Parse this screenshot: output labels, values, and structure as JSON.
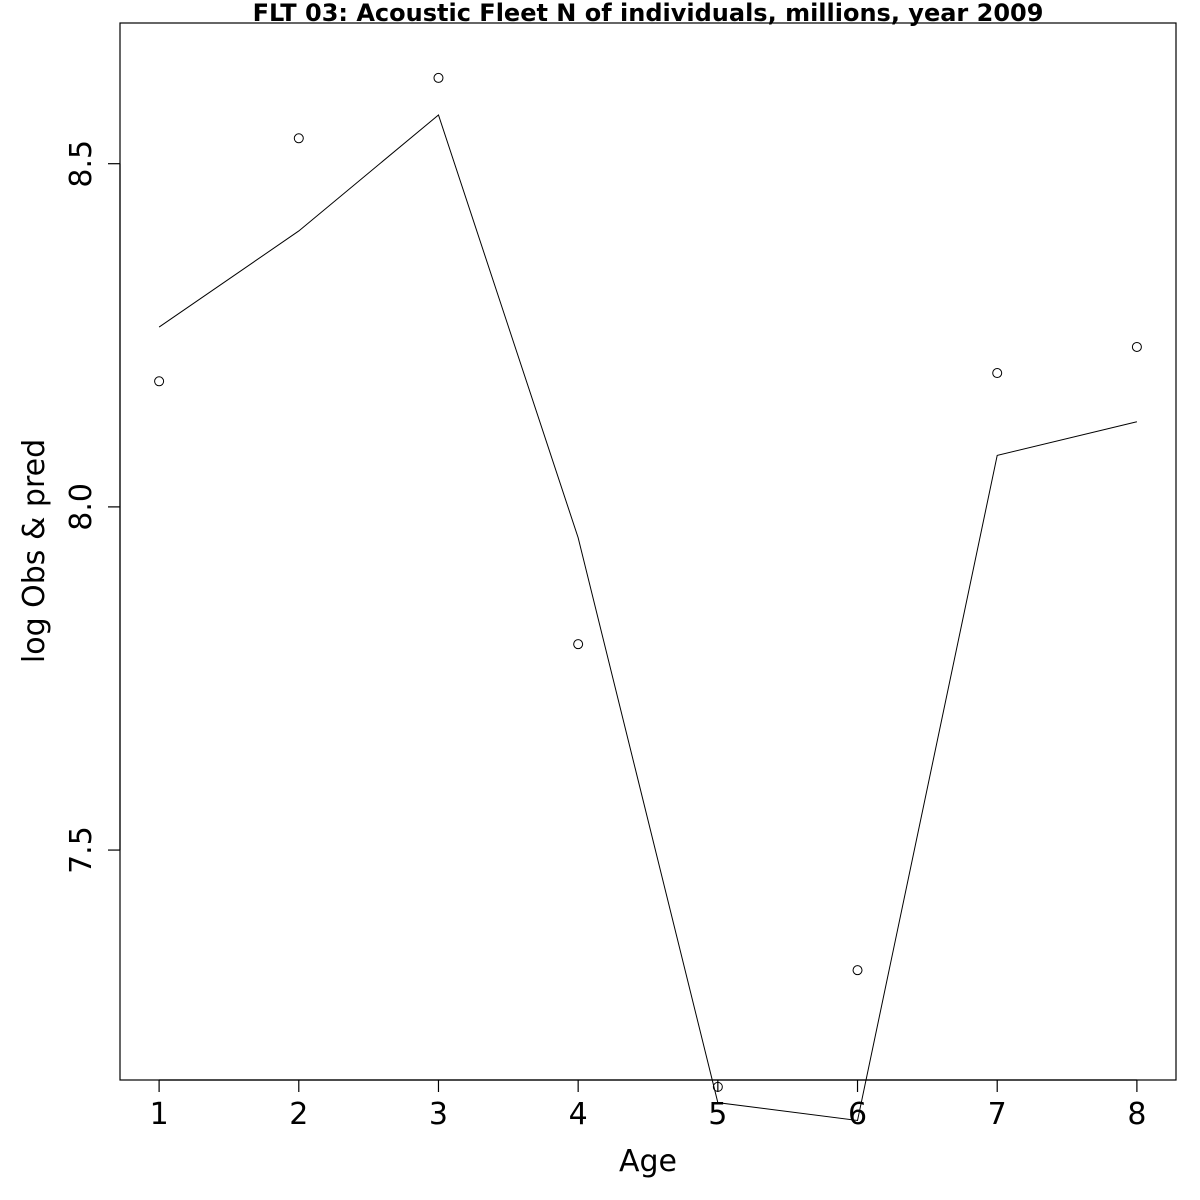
{
  "chart_data": {
    "type": "line",
    "title": "FLT 03: Acoustic Fleet  N of individuals, millions, year 2009",
    "xlabel": "Age",
    "ylabel": "log Obs & pred",
    "xlim": [
      0.72,
      8.28
    ],
    "ylim": [
      7.165,
      8.705
    ],
    "x_ticks": [
      1,
      2,
      3,
      4,
      5,
      6,
      7,
      8
    ],
    "x_tick_labels": [
      "1",
      "2",
      "3",
      "4",
      "5",
      "6",
      "7",
      "8"
    ],
    "y_ticks": [
      7.5,
      8.0,
      8.5
    ],
    "y_tick_labels": [
      "7.5",
      "8.0",
      "8.5"
    ],
    "grid": false,
    "series": [
      {
        "name": "observed",
        "style": "points",
        "marker": "open-circle",
        "x": [
          1,
          2,
          3,
          4,
          5,
          6,
          7,
          8
        ],
        "values": [
          8.183,
          8.537,
          8.625,
          7.8,
          7.155,
          7.325,
          8.195,
          8.233
        ]
      },
      {
        "name": "predicted",
        "style": "line",
        "x": [
          1,
          2,
          3,
          4,
          5,
          6,
          7,
          8
        ],
        "values": [
          8.262,
          8.402,
          8.571,
          7.955,
          7.132,
          7.106,
          8.075,
          8.124
        ]
      }
    ],
    "colors": {
      "foreground": "#000000",
      "background": "#ffffff"
    }
  }
}
